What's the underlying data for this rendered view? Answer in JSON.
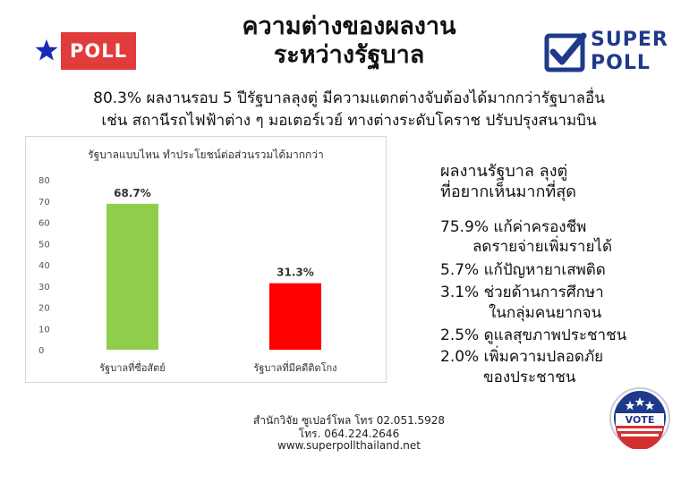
{
  "logo_left": {
    "text": "POLL",
    "star_color": "#1a2ab8",
    "box_color": "#e23b3b"
  },
  "title": {
    "line1": "ความต่างของผลงาน",
    "line2": "ระหว่างรัฐบาล"
  },
  "logo_right": {
    "line1": "SUPER",
    "line2": "POLL",
    "color": "#1f3a8a"
  },
  "summary": {
    "line1": "80.3% ผลงานรอบ 5 ปีรัฐบาลลุงตู่ มีความแตกต่างจับต้องได้มากกว่ารัฐบาลอื่น",
    "line2": "เช่น สถานีรถไฟฟ้าต่าง ๆ มอเตอร์เวย์ ทางต่างระดับโคราช ปรับปรุงสนามบิน"
  },
  "chart_data": {
    "type": "bar",
    "title": "รัฐบาลแบบไหน ทำประโยชน์ต่อส่วนรวมได้มากกว่า",
    "categories": [
      "รัฐบาลที่ซื่อสัตย์",
      "รัฐบาลที่มีคดีติดโกง"
    ],
    "values": [
      68.7,
      31.3
    ],
    "data_labels": [
      "68.7%",
      "31.3%"
    ],
    "colors": [
      "#8fce4a",
      "#ff0000"
    ],
    "ylim": [
      0,
      80
    ],
    "yticks": [
      0,
      10,
      20,
      30,
      40,
      50,
      60,
      70,
      80
    ],
    "xlabel": "",
    "ylabel": "",
    "grid": false
  },
  "right": {
    "heading_line1": "ผลงานรัฐบาล ลุงตู่",
    "heading_line2": "ที่อยากเห็นมากที่สุด",
    "items": [
      {
        "line1": "75.9% แก้ค่าครองชีพ",
        "line2": "ลดรายจ่ายเพิ่มรายได้"
      },
      {
        "line1": "5.7% แก้ปัญหายาเสพติด",
        "line2": ""
      },
      {
        "line1": "3.1% ช่วยด้านการศึกษา",
        "line2": "ในกลุ่มคนยากจน"
      },
      {
        "line1": "2.5% ดูแลสุขภาพประชาชน",
        "line2": ""
      },
      {
        "line1": "2.0% เพิ่มความปลอดภัย",
        "line2": "ของประชาชน"
      }
    ]
  },
  "vote_badge": {
    "text": "VOTE"
  },
  "footer": {
    "line1": "สำนักวิจัย ซูเปอร์โพล โทร 02.051.5928",
    "line2": "โทร. 064.224.2646",
    "line3": "www.superpollthailand.net"
  }
}
